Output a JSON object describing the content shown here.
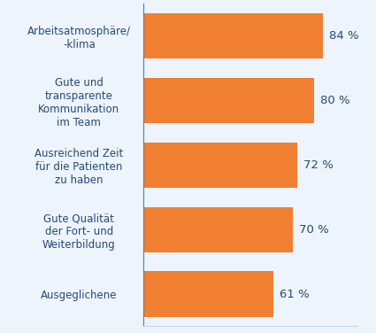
{
  "chart_data": {
    "type": "bar",
    "orientation": "horizontal",
    "categories": [
      "Arbeitsatmosphäre/\n-klima",
      "Gute und\ntransparente\nKommunikation\nim Team",
      "Ausreichend Zeit\nfür die Patienten\nzu haben",
      "Gute Qualität\nder Fort- und\nWeiterbildung",
      "Ausgeglichene"
    ],
    "values": [
      84,
      80,
      72,
      70,
      61
    ],
    "value_labels": [
      "84 %",
      "80 %",
      "72 %",
      "70 %",
      "61 %"
    ],
    "color": "#f07f32",
    "xlim": [
      0,
      100
    ],
    "xticks": [],
    "data_labels": true,
    "tick_labels": "y",
    "grid": false
  }
}
